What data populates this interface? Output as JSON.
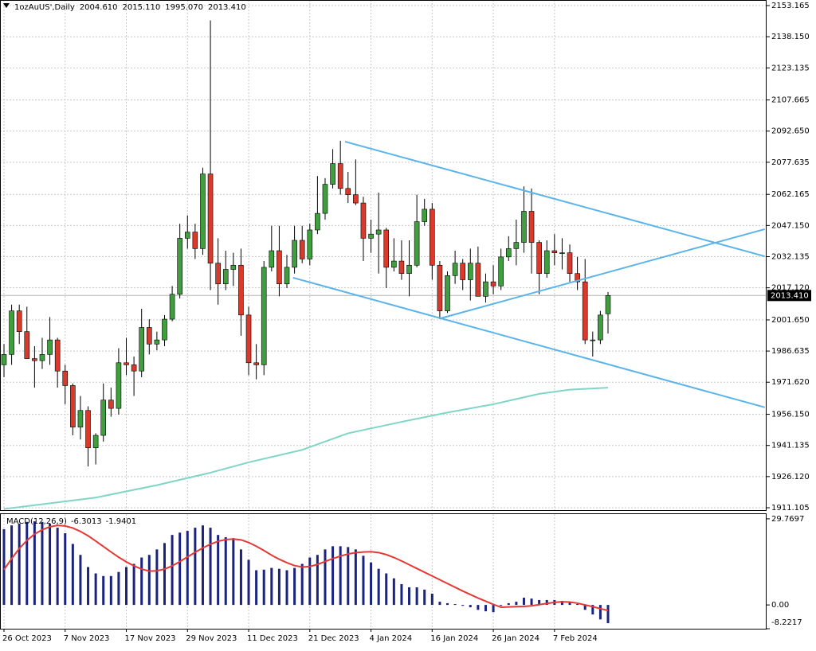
{
  "chart_data": {
    "type": "candlestick",
    "title": "1ozAuUS',Daily",
    "ohlc_header": [
      "2004.610",
      "2015.110",
      "1995.070",
      "2013.410"
    ],
    "categories": [
      "26 Oct 2023",
      null,
      null,
      null,
      null,
      null,
      null,
      null,
      "7 Nov 2023",
      null,
      null,
      null,
      null,
      null,
      null,
      null,
      "17 Nov 2023",
      null,
      null,
      null,
      null,
      null,
      null,
      null,
      "29 Nov 2023",
      null,
      null,
      null,
      null,
      null,
      null,
      null,
      "11 Dec 2023",
      null,
      null,
      null,
      null,
      null,
      null,
      null,
      "21 Dec 2023",
      null,
      null,
      null,
      null,
      null,
      null,
      null,
      "4 Jan 2024",
      null,
      null,
      null,
      null,
      null,
      null,
      null,
      "16 Jan 2024",
      null,
      null,
      null,
      null,
      null,
      null,
      null,
      "26 Jan 2024",
      null,
      null,
      null,
      null,
      null,
      null,
      null,
      "7 Feb 2024",
      null,
      null,
      null,
      null,
      null,
      null,
      null
    ],
    "open": [
      1980,
      1985,
      2006,
      1996,
      1983,
      1982,
      1985,
      1992,
      1977,
      1970,
      1950,
      1958,
      1940,
      1946,
      1963,
      1959,
      1981,
      1980,
      1977,
      1998,
      1990,
      1992,
      2002,
      2014,
      2041,
      2044,
      2036,
      2072,
      2029,
      2019,
      2026,
      2028,
      2004,
      1981,
      1980,
      2027,
      2035,
      2019,
      2027,
      2040,
      2031,
      2045,
      2053,
      2067,
      2077,
      2065,
      2062,
      2058,
      2041,
      2043,
      2045,
      2027,
      2030,
      2024,
      2028,
      2049,
      2055,
      2028,
      2006,
      2023,
      2029,
      2021,
      2029,
      2013,
      2020,
      2018,
      2032,
      2036,
      2039,
      2054,
      2039,
      2024,
      2035,
      2034,
      2034,
      2024,
      2020,
      1992,
      1992,
      2004.61
    ],
    "high": [
      1990,
      2009,
      2009,
      2008,
      1989,
      1993,
      2003,
      1993,
      1980,
      1971,
      1965,
      1960,
      1947,
      1971,
      1969,
      1988,
      1993,
      1984,
      2007,
      2002,
      1996,
      2004,
      2018,
      2048,
      2052,
      2048,
      2075,
      2146,
      2041,
      2035,
      2034,
      2036,
      2008,
      1990,
      2030,
      2047,
      2047,
      2033,
      2047,
      2047,
      2048,
      2071,
      2070,
      2084,
      2088,
      2073,
      2079,
      2061,
      2050,
      2063,
      2046,
      2041,
      2040,
      2040,
      2062,
      2060,
      2058,
      2030,
      2025,
      2035,
      2031,
      2036,
      2037,
      2024,
      2028,
      2036,
      2042,
      2050,
      2066,
      2065,
      2040,
      2040,
      2043,
      2041,
      2038,
      2032,
      2031,
      1996,
      2006,
      2015.11
    ],
    "low": [
      1974,
      1980,
      1990,
      1983,
      1969,
      1978,
      1980,
      1969,
      1961,
      1946,
      1944,
      1931,
      1932,
      1943,
      1955,
      1956,
      1975,
      1965,
      1974,
      1985,
      1987,
      1989,
      2001,
      2012,
      2036,
      2031,
      2033,
      2016,
      2009,
      2016,
      2018,
      1994,
      1975,
      1973,
      1975,
      2025,
      2013,
      2017,
      2024,
      2029,
      2028,
      2043,
      2050,
      2065,
      2062,
      2058,
      2057,
      2030,
      2034,
      2024,
      2017,
      2025,
      2021,
      2013,
      2027,
      2047,
      2021,
      2002,
      2005,
      2019,
      2016,
      2011,
      2013,
      2010,
      2014,
      2016,
      2030,
      2028,
      2034,
      2024,
      2014,
      2022,
      2028,
      2026,
      2020,
      2016,
      1990,
      1984,
      1990,
      1995.07
    ],
    "close": [
      1985,
      2006,
      1996,
      1983,
      1982,
      1985,
      1992,
      1977,
      1970,
      1950,
      1958,
      1940,
      1946,
      1963,
      1959,
      1981,
      1980,
      1977,
      1998,
      1990,
      1992,
      2002,
      2014,
      2041,
      2044,
      2036,
      2072,
      2029,
      2019,
      2026,
      2028,
      2004,
      1981,
      1980,
      2027,
      2035,
      2019,
      2027,
      2040,
      2031,
      2045,
      2053,
      2067,
      2077,
      2065,
      2062,
      2058,
      2041,
      2043,
      2045,
      2027,
      2030,
      2024,
      2028,
      2049,
      2055,
      2028,
      2006,
      2023,
      2029,
      2021,
      2029,
      2013,
      2020,
      2018,
      2032,
      2036,
      2039,
      2054,
      2039,
      2024,
      2035,
      2034,
      2034,
      2024,
      2020,
      1992,
      1992,
      2004,
      2013.41
    ],
    "up_color": "#3f9f3f",
    "down_color": "#d93a2b",
    "xlim": [
      -0.52,
      99.74
    ],
    "ylim": [
      1909.95,
      2155.85
    ],
    "yticks": [
      2153.165,
      {
        "value": 2138.15,
        "label": "2138.150"
      },
      2123.135,
      2107.665,
      {
        "value": 2092.65,
        "label": "2092.650"
      },
      2077.635,
      2062.165,
      {
        "value": 2047.15,
        "label": "2047.150"
      },
      2032.135,
      {
        "value": 2017.12,
        "label": "2017.120"
      },
      {
        "value": 2001.65,
        "label": "2001.650"
      },
      1986.635,
      {
        "value": 1971.62,
        "label": "1971.620"
      },
      {
        "value": 1956.15,
        "label": "1956.150"
      },
      1941.135,
      {
        "value": 1926.12,
        "label": "1926.120"
      },
      1911.105
    ],
    "grid": true,
    "current_price": {
      "value": 2013.41,
      "label": "2013.410"
    },
    "moving_average": {
      "color": "#7fd6c6",
      "x": [
        0,
        12,
        20,
        27,
        32,
        39,
        45,
        52,
        58,
        64,
        70,
        74,
        79
      ],
      "values": [
        1910.5,
        1916,
        1922,
        1928,
        1933,
        1939,
        1947,
        1952.5,
        1957,
        1961,
        1966,
        1968,
        1969
      ]
    },
    "trendlines": [
      {
        "color": "#5ab4ea",
        "x": [
          44.6,
          99.5
        ],
        "y": [
          2087.6,
          2032.3
        ]
      },
      {
        "color": "#5ab4ea",
        "x": [
          37.8,
          99.5
        ],
        "y": [
          2022,
          1959.5
        ]
      },
      {
        "color": "#5ab4ea",
        "x": [
          57.1,
          99.5
        ],
        "y": [
          2002.4,
          2045.4
        ]
      }
    ],
    "macd": {
      "title": "MACD(12,26,9)",
      "header_values": [
        "-6.3013",
        "-1.9401"
      ],
      "ylim": [
        -8.2217,
        31.4
      ],
      "yticks": [
        29.7697,
        {
          "value": 0,
          "label": "0.00"
        },
        -8.2217
      ],
      "histogram_color": "#1a237e",
      "signal_color": "#e53935",
      "histogram": [
        26.2,
        27.5,
        28.1,
        28.7,
        28.9,
        28.7,
        28.1,
        26.7,
        24.8,
        21.1,
        17.3,
        13.1,
        10.9,
        10.0,
        10.0,
        11.4,
        13.1,
        14.2,
        16.4,
        17.3,
        19.2,
        21.4,
        24.2,
        25.0,
        25.6,
        26.7,
        27.5,
        26.7,
        24.2,
        23.4,
        23.1,
        19.2,
        15.6,
        12.0,
        12.2,
        12.8,
        12.5,
        12.0,
        12.8,
        14.2,
        16.4,
        17.3,
        19.2,
        20.3,
        20.3,
        20.0,
        19.2,
        17.0,
        14.7,
        12.5,
        10.9,
        9.2,
        7.2,
        6.1,
        6.1,
        5.3,
        3.9,
        1.1,
        0.6,
        0.3,
        -0.3,
        -0.8,
        -1.7,
        -2.2,
        -2.5,
        -0.3,
        0.6,
        1.1,
        2.5,
        2.2,
        1.7,
        1.7,
        1.7,
        1.4,
        1.1,
        0.3,
        -1.7,
        -3.3,
        -5.0,
        -6.3013
      ],
      "signal": [
        12.2,
        16,
        19.5,
        22.3,
        24.5,
        26,
        27,
        27.5,
        27.3,
        26.6,
        25.4,
        23.9,
        22.1,
        20.2,
        18.3,
        16.5,
        14.9,
        13.5,
        12.4,
        11.7,
        11.8,
        12.4,
        13.5,
        15,
        16.6,
        18.2,
        19.7,
        21,
        22,
        22.6,
        22.8,
        22.5,
        21.6,
        20.3,
        18.8,
        17.2,
        15.8,
        14.6,
        13.6,
        13.1,
        13.3,
        14,
        15,
        16,
        16.9,
        17.6,
        18.1,
        18.3,
        18.4,
        18.1,
        17.4,
        16.4,
        15.2,
        13.9,
        12.6,
        11.3,
        10,
        8.7,
        7.4,
        6.1,
        4.8,
        3.6,
        2.4,
        1.3,
        0.2,
        -0.8,
        -0.7,
        -0.6,
        -0.5,
        -0.3,
        0.1,
        0.5,
        0.9,
        1.1,
        1,
        0.6,
        0,
        -0.6,
        -1.3,
        -1.9401
      ]
    }
  }
}
